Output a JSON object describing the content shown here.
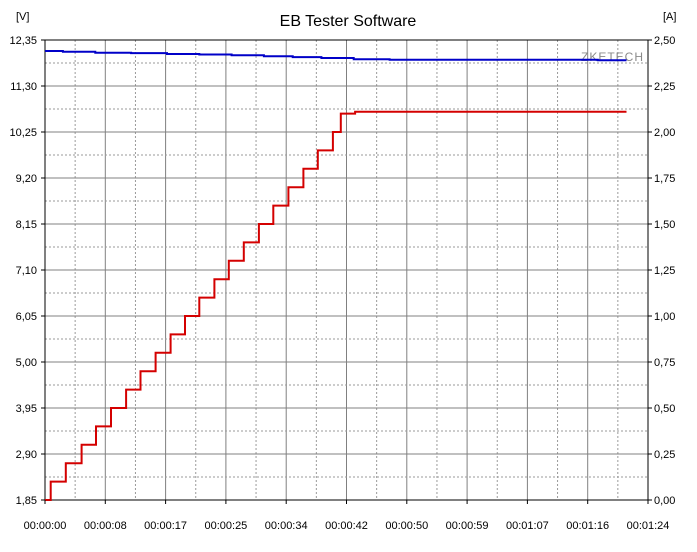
{
  "chart_data": {
    "type": "line",
    "title": "EB Tester Software",
    "watermark": "ZKETECH",
    "left_unit": "[V]",
    "right_unit": "[A]",
    "grid": true,
    "x_ticks": [
      "00:00:00",
      "00:00:08",
      "00:00:17",
      "00:00:25",
      "00:00:34",
      "00:00:42",
      "00:00:50",
      "00:00:59",
      "00:01:07",
      "00:01:16",
      "00:01:24"
    ],
    "y_left_ticks": [
      "1,85",
      "2,90",
      "3,95",
      "5,00",
      "6,05",
      "7,10",
      "8,15",
      "9,20",
      "10,25",
      "11,30",
      "12,35"
    ],
    "y_right_ticks": [
      "0,00",
      "0,25",
      "0,50",
      "0,75",
      "1,00",
      "1,25",
      "1,50",
      "1,75",
      "2,00",
      "2,25",
      "2,50"
    ],
    "xlim_seconds": [
      0,
      84
    ],
    "ylim_left": [
      1.85,
      12.35
    ],
    "ylim_right": [
      0,
      2.5
    ],
    "series": [
      {
        "axis": "left",
        "color": "#0000c8",
        "x": [
          0,
          2.5,
          2.5,
          7,
          7,
          12,
          12,
          17,
          17,
          21.5,
          21.5,
          26,
          26,
          30.5,
          30.5,
          34.5,
          34.5,
          38.5,
          38.5,
          43,
          43,
          48,
          48,
          57,
          57,
          67,
          67,
          77,
          77,
          81
        ],
        "y": [
          12.1,
          12.1,
          12.08,
          12.08,
          12.06,
          12.06,
          12.05,
          12.05,
          12.03,
          12.03,
          12.02,
          12.02,
          12.0,
          12.0,
          11.98,
          11.98,
          11.96,
          11.96,
          11.94,
          11.94,
          11.91,
          11.91,
          11.9,
          11.9,
          11.9,
          11.9,
          11.9,
          11.9,
          11.89,
          11.89
        ]
      },
      {
        "axis": "right",
        "color": "#d40000",
        "steps": [
          [
            0,
            0.0
          ],
          [
            0.8,
            0.1
          ],
          [
            2.9,
            0.2
          ],
          [
            5.1,
            0.3
          ],
          [
            7.1,
            0.4
          ],
          [
            9.2,
            0.5
          ],
          [
            11.3,
            0.6
          ],
          [
            13.3,
            0.7
          ],
          [
            15.4,
            0.8
          ],
          [
            17.5,
            0.9
          ],
          [
            19.5,
            1.0
          ],
          [
            21.5,
            1.1
          ],
          [
            23.6,
            1.2
          ],
          [
            25.6,
            1.3
          ],
          [
            27.7,
            1.4
          ],
          [
            29.8,
            1.5
          ],
          [
            31.8,
            1.6
          ],
          [
            33.9,
            1.7
          ],
          [
            36,
            1.8
          ],
          [
            38,
            1.9
          ],
          [
            40.1,
            2.0
          ],
          [
            41.2,
            2.1
          ],
          [
            42.3,
            2.1
          ],
          [
            43.2,
            2.11
          ]
        ],
        "x_end": 81,
        "y_end": 2.11
      }
    ]
  }
}
